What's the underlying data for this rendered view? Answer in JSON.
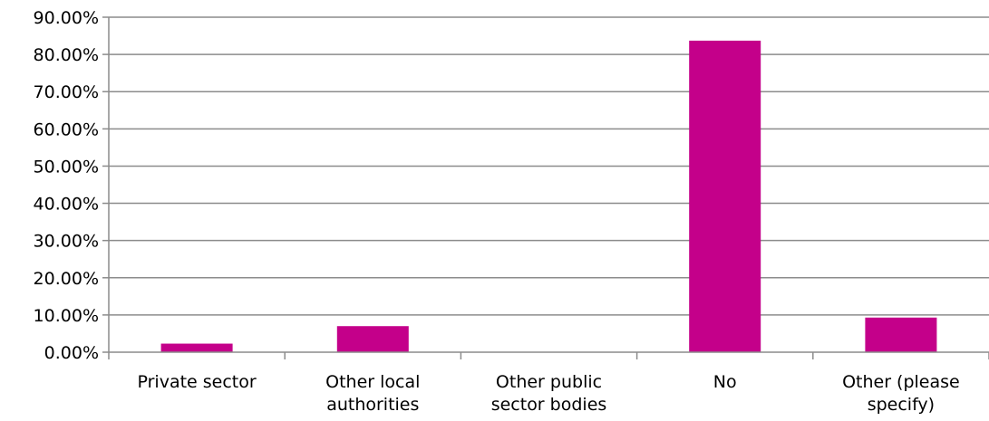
{
  "chart_data": {
    "type": "bar",
    "categories": [
      [
        "Private sector"
      ],
      [
        "Other local",
        "authorities"
      ],
      [
        "Other public",
        "sector bodies"
      ],
      [
        "No"
      ],
      [
        "Other (please",
        "specify)"
      ]
    ],
    "values": [
      2.3,
      7.0,
      0.0,
      83.7,
      9.3
    ],
    "ylim": [
      0,
      90
    ],
    "yticks": [
      "0.00%",
      "10.00%",
      "20.00%",
      "30.00%",
      "40.00%",
      "50.00%",
      "60.00%",
      "70.00%",
      "80.00%",
      "90.00%"
    ],
    "grid": true,
    "bar_color": "#c4008a",
    "grid_color": "#8c8c8c"
  }
}
